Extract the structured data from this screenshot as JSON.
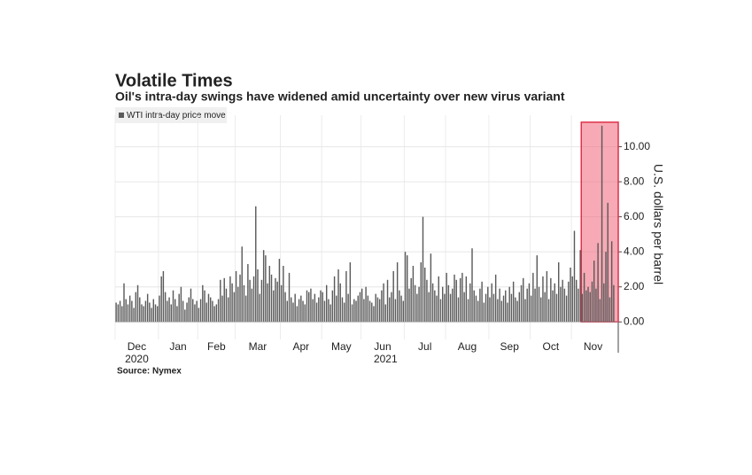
{
  "chart_data": {
    "type": "bar",
    "title": "Volatile Times",
    "subtitle": "Oil's intra-day swings have widened amid uncertainty over new virus variant",
    "legend": "WTI intra-day price move",
    "y_axis_label": "U.S. dollars per barrel",
    "source": "Source: Nymex",
    "color": "#5a5a5a",
    "highlight_color": "#f06478",
    "ylim": [
      -1,
      11.8
    ],
    "yticks": [
      {
        "value": 0,
        "label": "0.00"
      },
      {
        "value": 2,
        "label": "2.00"
      },
      {
        "value": 4,
        "label": "4.00"
      },
      {
        "value": 6,
        "label": "6.00"
      },
      {
        "value": 8,
        "label": "8.00"
      },
      {
        "value": 10,
        "label": "10.00"
      }
    ],
    "grid": true,
    "years": [
      "2020",
      "2021"
    ],
    "months": [
      {
        "label": "Dec",
        "values": [
          1.1,
          1.0,
          1.2,
          0.9,
          2.2,
          1.3,
          1.0,
          1.5,
          1.2,
          0.8,
          1.7,
          2.1,
          1.4,
          1.0,
          0.9,
          1.2,
          1.6,
          1.1,
          0.8,
          1.3,
          1.0,
          0.9
        ]
      },
      {
        "label": "Jan",
        "values": [
          1.5,
          2.6,
          2.9,
          1.7,
          1.2,
          1.4,
          1.0,
          1.8,
          1.3,
          0.9,
          1.6,
          2.0,
          1.2,
          0.7,
          1.1,
          1.4,
          1.9,
          1.3,
          1.0,
          1.2
        ]
      },
      {
        "label": "Feb",
        "values": [
          0.8,
          1.3,
          2.1,
          1.8,
          1.1,
          1.6,
          1.4,
          1.2,
          0.9,
          1.0,
          1.3,
          2.4,
          1.5,
          2.5,
          1.9,
          1.4,
          2.6,
          2.2,
          1.7
        ]
      },
      {
        "label": "Mar",
        "values": [
          2.9,
          2.0,
          2.7,
          4.3,
          2.1,
          1.5,
          3.3,
          2.4,
          1.9,
          2.6,
          6.6,
          3.0,
          1.6,
          2.4,
          4.1,
          3.8,
          2.2,
          3.2,
          2.7,
          1.8,
          2.5,
          2.3,
          3.6
        ]
      },
      {
        "label": "Apr",
        "values": [
          2.1,
          3.2,
          1.7,
          1.2,
          2.8,
          1.4,
          1.1,
          1.6,
          0.9,
          1.3,
          1.5,
          1.2,
          1.0,
          1.8,
          1.7,
          1.9,
          1.3,
          1.6,
          1.1,
          1.4,
          1.8
        ]
      },
      {
        "label": "May",
        "values": [
          1.7,
          1.2,
          2.1,
          1.3,
          1.0,
          1.8,
          2.6,
          1.5,
          3.0,
          2.2,
          1.4,
          1.1,
          2.9,
          1.6,
          3.4,
          1.0,
          1.3,
          1.2,
          1.5,
          1.7
        ]
      },
      {
        "label": "Jun",
        "values": [
          1.9,
          1.3,
          2.0,
          1.5,
          1.2,
          1.1,
          0.9,
          1.6,
          1.4,
          1.3,
          1.8,
          2.2,
          1.0,
          2.4,
          1.4,
          1.7,
          2.9,
          1.3,
          3.4,
          1.8,
          1.5,
          1.2
        ]
      },
      {
        "label": "Jul",
        "values": [
          4.0,
          3.8,
          1.9,
          2.5,
          3.2,
          2.1,
          1.6,
          2.0,
          3.4,
          6.0,
          3.1,
          2.4,
          1.7,
          3.9,
          2.2,
          1.8,
          1.5,
          2.6,
          1.3,
          2.0,
          1.6
        ]
      },
      {
        "label": "Aug",
        "values": [
          2.8,
          2.1,
          1.6,
          1.9,
          2.7,
          2.4,
          1.4,
          2.5,
          2.8,
          1.7,
          2.6,
          1.3,
          2.2,
          4.2,
          1.8,
          1.5,
          1.2,
          1.9,
          2.3,
          1.1,
          1.6,
          2.0
        ]
      },
      {
        "label": "Sep",
        "values": [
          1.4,
          2.2,
          1.6,
          2.7,
          1.3,
          1.9,
          1.2,
          1.5,
          1.8,
          1.1,
          2.0,
          1.6,
          2.3,
          1.4,
          1.2,
          1.7,
          2.1,
          2.5,
          1.3,
          1.9,
          2.2
        ]
      },
      {
        "label": "Oct",
        "values": [
          1.5,
          2.8,
          1.9,
          3.8,
          2.0,
          1.4,
          2.6,
          1.7,
          2.9,
          1.3,
          2.5,
          1.8,
          2.2,
          1.6,
          3.4,
          2.0,
          2.4,
          1.9,
          1.5,
          2.3,
          3.1
        ]
      },
      {
        "label": "Nov",
        "values": [
          2.6,
          5.2,
          2.4,
          1.9,
          4.1,
          1.6,
          2.8,
          1.8,
          2.0,
          1.7,
          2.3,
          3.5,
          1.9,
          4.5,
          1.3,
          11.2,
          2.2,
          4.0,
          6.8,
          1.4,
          4.6,
          2.1
        ]
      }
    ]
  }
}
